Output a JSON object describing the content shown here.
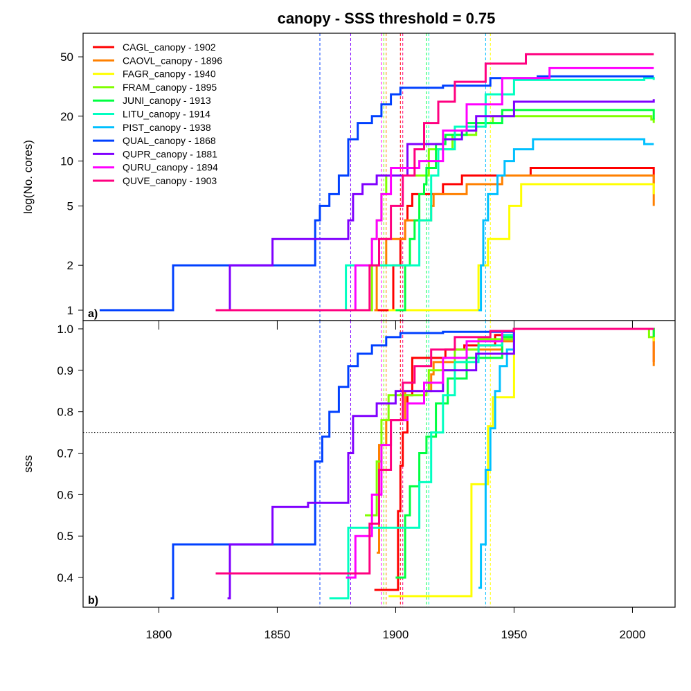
{
  "chart_data": {
    "type": "line",
    "title": "canopy - SSS threshold = 0.75",
    "threshold": 0.75,
    "xlim": [
      1768,
      2018
    ],
    "x_ticks": [
      1800,
      1850,
      1900,
      1950,
      2000
    ],
    "legend_position": "top-left",
    "series": [
      {
        "name": "CAGL_canopy - 1902",
        "color": "#ff0000",
        "signal_year": 1902,
        "cores": [
          [
            1891,
            1
          ],
          [
            1898,
            1
          ],
          [
            1899,
            2
          ],
          [
            1901,
            2
          ],
          [
            1902,
            3
          ],
          [
            1904,
            4
          ],
          [
            1905,
            5
          ],
          [
            1907,
            6
          ],
          [
            1919,
            6
          ],
          [
            1920,
            7
          ],
          [
            1928,
            8
          ],
          [
            1934,
            8
          ],
          [
            1935,
            8
          ],
          [
            1957,
            9
          ],
          [
            2007,
            9
          ],
          [
            2009,
            7
          ]
        ],
        "sss": [
          [
            1891,
            0.37
          ],
          [
            1899,
            0.37
          ],
          [
            1900,
            0.37
          ],
          [
            1901,
            0.56
          ],
          [
            1902,
            0.67
          ],
          [
            1903,
            0.75
          ],
          [
            1905,
            0.84
          ],
          [
            1907,
            0.93
          ],
          [
            1919,
            0.93
          ],
          [
            1921,
            0.95
          ],
          [
            1929,
            0.96
          ],
          [
            1936,
            0.96
          ],
          [
            1942,
            0.985
          ],
          [
            1950,
            1.0
          ],
          [
            2007,
            1.0
          ],
          [
            2009,
            0.92
          ]
        ]
      },
      {
        "name": "CAOVL_canopy - 1896",
        "color": "#ff8000",
        "signal_year": 1896,
        "cores": [
          [
            1891,
            1
          ],
          [
            1892,
            2
          ],
          [
            1896,
            3
          ],
          [
            1903,
            3
          ],
          [
            1904,
            4
          ],
          [
            1915,
            5
          ],
          [
            1916,
            6
          ],
          [
            1930,
            7
          ],
          [
            1945,
            8
          ],
          [
            2007,
            8
          ],
          [
            2009,
            5
          ]
        ],
        "sss": [
          [
            1892,
            0.46
          ],
          [
            1893,
            0.72
          ],
          [
            1896,
            0.78
          ],
          [
            1903,
            0.78
          ],
          [
            1904,
            0.85
          ],
          [
            1915,
            0.89
          ],
          [
            1916,
            0.92
          ],
          [
            1930,
            0.95
          ],
          [
            1945,
            0.97
          ],
          [
            1950,
            1.0
          ],
          [
            2007,
            1.0
          ],
          [
            2009,
            0.91
          ]
        ]
      },
      {
        "name": "FAGR_canopy - 1940",
        "color": "#ffff00",
        "signal_year": 1940,
        "cores": [
          [
            1897,
            1
          ],
          [
            1934,
            1
          ],
          [
            1935,
            2
          ],
          [
            1939,
            3
          ],
          [
            1948,
            5
          ],
          [
            1953,
            7
          ],
          [
            2008,
            7
          ],
          [
            2009,
            6
          ]
        ],
        "sss": [
          [
            1897,
            0.355
          ],
          [
            1931,
            0.355
          ],
          [
            1932,
            0.625
          ],
          [
            1937,
            0.625
          ],
          [
            1939,
            0.765
          ],
          [
            1941,
            0.835
          ],
          [
            1949,
            0.835
          ],
          [
            1950,
            1.0
          ],
          [
            2008,
            1.0
          ],
          [
            2009,
            0.97
          ]
        ]
      },
      {
        "name": "FRAM_canopy - 1895",
        "color": "#80ff00",
        "signal_year": 1895,
        "cores": [
          [
            1887,
            1
          ],
          [
            1890,
            3
          ],
          [
            1892,
            4
          ],
          [
            1894,
            6
          ],
          [
            1896,
            8
          ],
          [
            1913,
            8
          ],
          [
            1914,
            12
          ],
          [
            1924,
            15
          ],
          [
            1934,
            18
          ],
          [
            1941,
            20
          ],
          [
            1980,
            20
          ],
          [
            2008,
            19
          ],
          [
            2009,
            18
          ]
        ],
        "sss": [
          [
            1887,
            0.55
          ],
          [
            1892,
            0.68
          ],
          [
            1894,
            0.78
          ],
          [
            1897,
            0.84
          ],
          [
            1913,
            0.85
          ],
          [
            1914,
            0.9
          ],
          [
            1925,
            0.95
          ],
          [
            1935,
            0.975
          ],
          [
            1950,
            1.0
          ],
          [
            2007,
            0.98
          ],
          [
            2009,
            0.98
          ]
        ]
      },
      {
        "name": "JUNI_canopy - 1913",
        "color": "#00ff40",
        "signal_year": 1913,
        "cores": [
          [
            1900,
            1
          ],
          [
            1904,
            2
          ],
          [
            1906,
            3
          ],
          [
            1908,
            4
          ],
          [
            1910,
            6
          ],
          [
            1912,
            7
          ],
          [
            1913,
            9
          ],
          [
            1917,
            13
          ],
          [
            1921,
            15
          ],
          [
            1930,
            18
          ],
          [
            1945,
            22
          ],
          [
            2000,
            22
          ],
          [
            2009,
            19
          ]
        ],
        "sss": [
          [
            1900,
            0.4
          ],
          [
            1904,
            0.55
          ],
          [
            1906,
            0.62
          ],
          [
            1910,
            0.7
          ],
          [
            1913,
            0.74
          ],
          [
            1917,
            0.82
          ],
          [
            1922,
            0.88
          ],
          [
            1930,
            0.93
          ],
          [
            1945,
            0.98
          ],
          [
            1950,
            1.0
          ],
          [
            2008,
            1.0
          ],
          [
            2009,
            0.98
          ]
        ]
      },
      {
        "name": "LITU_canopy - 1914",
        "color": "#00ffc0",
        "signal_year": 1914,
        "cores": [
          [
            1878,
            1
          ],
          [
            1879,
            2
          ],
          [
            1880,
            2
          ],
          [
            1909,
            2
          ],
          [
            1910,
            4
          ],
          [
            1915,
            8
          ],
          [
            1918,
            12
          ],
          [
            1925,
            17
          ],
          [
            1938,
            28
          ],
          [
            1950,
            35
          ],
          [
            2005,
            36
          ],
          [
            2009,
            35
          ]
        ],
        "sss": [
          [
            1872,
            0.35
          ],
          [
            1879,
            0.35
          ],
          [
            1880,
            0.52
          ],
          [
            1908,
            0.52
          ],
          [
            1910,
            0.63
          ],
          [
            1915,
            0.75
          ],
          [
            1920,
            0.84
          ],
          [
            1925,
            0.92
          ],
          [
            1935,
            0.96
          ],
          [
            1945,
            0.985
          ],
          [
            1950,
            1.0
          ],
          [
            2009,
            1.0
          ]
        ]
      },
      {
        "name": "PIST_canopy - 1938",
        "color": "#00c0ff",
        "signal_year": 1938,
        "cores": [
          [
            1935,
            1
          ],
          [
            1936,
            2
          ],
          [
            1937,
            4
          ],
          [
            1939,
            6
          ],
          [
            1943,
            8
          ],
          [
            1946,
            10
          ],
          [
            1950,
            12
          ],
          [
            1958,
            14
          ],
          [
            2005,
            13
          ],
          [
            2009,
            13
          ]
        ],
        "sss": [
          [
            1935,
            0.375
          ],
          [
            1936,
            0.48
          ],
          [
            1938,
            0.66
          ],
          [
            1940,
            0.76
          ],
          [
            1942,
            0.85
          ],
          [
            1944,
            0.91
          ],
          [
            1947,
            0.95
          ],
          [
            1950,
            1.0
          ],
          [
            2009,
            1.0
          ]
        ]
      },
      {
        "name": "QUAL_canopy - 1868",
        "color": "#0040ff",
        "signal_year": 1868,
        "cores": [
          [
            1775,
            1
          ],
          [
            1805,
            1
          ],
          [
            1806,
            2
          ],
          [
            1863,
            2
          ],
          [
            1866,
            4
          ],
          [
            1868,
            5
          ],
          [
            1872,
            6
          ],
          [
            1876,
            8
          ],
          [
            1880,
            14
          ],
          [
            1884,
            18
          ],
          [
            1890,
            20
          ],
          [
            1894,
            24
          ],
          [
            1898,
            28
          ],
          [
            1902,
            31
          ],
          [
            1920,
            32
          ],
          [
            1940,
            36
          ],
          [
            1960,
            37
          ],
          [
            2009,
            37
          ]
        ],
        "sss": [
          [
            1805,
            0.35
          ],
          [
            1806,
            0.48
          ],
          [
            1864,
            0.48
          ],
          [
            1866,
            0.68
          ],
          [
            1869,
            0.74
          ],
          [
            1872,
            0.8
          ],
          [
            1876,
            0.86
          ],
          [
            1880,
            0.91
          ],
          [
            1884,
            0.94
          ],
          [
            1890,
            0.96
          ],
          [
            1896,
            0.98
          ],
          [
            1902,
            0.99
          ],
          [
            1920,
            0.993
          ],
          [
            1950,
            1.0
          ],
          [
            2009,
            1.0
          ]
        ]
      },
      {
        "name": "QUPR_canopy - 1881",
        "color": "#8000ff",
        "signal_year": 1881,
        "cores": [
          [
            1829,
            1
          ],
          [
            1830,
            2
          ],
          [
            1847,
            2
          ],
          [
            1848,
            3
          ],
          [
            1880,
            4
          ],
          [
            1882,
            6
          ],
          [
            1886,
            7
          ],
          [
            1892,
            8
          ],
          [
            1905,
            13
          ],
          [
            1920,
            14
          ],
          [
            1928,
            16
          ],
          [
            1934,
            20
          ],
          [
            1950,
            25
          ],
          [
            2009,
            26
          ]
        ],
        "sss": [
          [
            1829,
            0.35
          ],
          [
            1830,
            0.48
          ],
          [
            1847,
            0.48
          ],
          [
            1848,
            0.57
          ],
          [
            1862,
            0.57
          ],
          [
            1863,
            0.58
          ],
          [
            1880,
            0.7
          ],
          [
            1882,
            0.79
          ],
          [
            1892,
            0.82
          ],
          [
            1900,
            0.85
          ],
          [
            1920,
            0.9
          ],
          [
            1934,
            0.94
          ],
          [
            1950,
            1.0
          ],
          [
            2009,
            1.0
          ]
        ]
      },
      {
        "name": "QURU_canopy - 1894",
        "color": "#ff00ff",
        "signal_year": 1894,
        "cores": [
          [
            1879,
            1
          ],
          [
            1883,
            2
          ],
          [
            1890,
            3
          ],
          [
            1892,
            4
          ],
          [
            1894,
            6
          ],
          [
            1898,
            9
          ],
          [
            1910,
            10
          ],
          [
            1920,
            16
          ],
          [
            1930,
            24
          ],
          [
            1945,
            36
          ],
          [
            1965,
            42
          ],
          [
            2009,
            42
          ]
        ],
        "sss": [
          [
            1879,
            0.4
          ],
          [
            1882,
            0.4
          ],
          [
            1883,
            0.5
          ],
          [
            1890,
            0.6
          ],
          [
            1894,
            0.72
          ],
          [
            1898,
            0.78
          ],
          [
            1905,
            0.82
          ],
          [
            1912,
            0.87
          ],
          [
            1920,
            0.93
          ],
          [
            1930,
            0.97
          ],
          [
            1945,
            0.995
          ],
          [
            1950,
            1.0
          ],
          [
            2009,
            1.0
          ]
        ]
      },
      {
        "name": "QUVE_canopy - 1903",
        "color": "#ff0080",
        "signal_year": 1903,
        "cores": [
          [
            1824,
            1
          ],
          [
            1887,
            1
          ],
          [
            1889,
            2
          ],
          [
            1893,
            3
          ],
          [
            1898,
            5
          ],
          [
            1903,
            8
          ],
          [
            1908,
            12
          ],
          [
            1912,
            18
          ],
          [
            1918,
            25
          ],
          [
            1925,
            34
          ],
          [
            1938,
            45
          ],
          [
            1955,
            52
          ],
          [
            2009,
            52
          ]
        ],
        "sss": [
          [
            1824,
            0.41
          ],
          [
            1887,
            0.41
          ],
          [
            1889,
            0.53
          ],
          [
            1893,
            0.66
          ],
          [
            1898,
            0.78
          ],
          [
            1903,
            0.87
          ],
          [
            1908,
            0.91
          ],
          [
            1915,
            0.95
          ],
          [
            1925,
            0.98
          ],
          [
            1940,
            0.995
          ],
          [
            1950,
            1.0
          ],
          [
            2009,
            1.0
          ]
        ]
      }
    ],
    "panels": [
      {
        "label": "a)",
        "ylabel": "log(No. cores)",
        "scale": "log",
        "ylim": [
          1,
          60
        ],
        "y_ticks": [
          1,
          2,
          5,
          10,
          20,
          50
        ],
        "value_key": "cores"
      },
      {
        "label": "b)",
        "ylabel": "sss",
        "scale": "linear",
        "ylim": [
          0.345,
          1.02
        ],
        "y_ticks": [
          0.4,
          0.5,
          0.6,
          0.7,
          0.8,
          0.9,
          1.0
        ],
        "value_key": "sss"
      }
    ]
  }
}
